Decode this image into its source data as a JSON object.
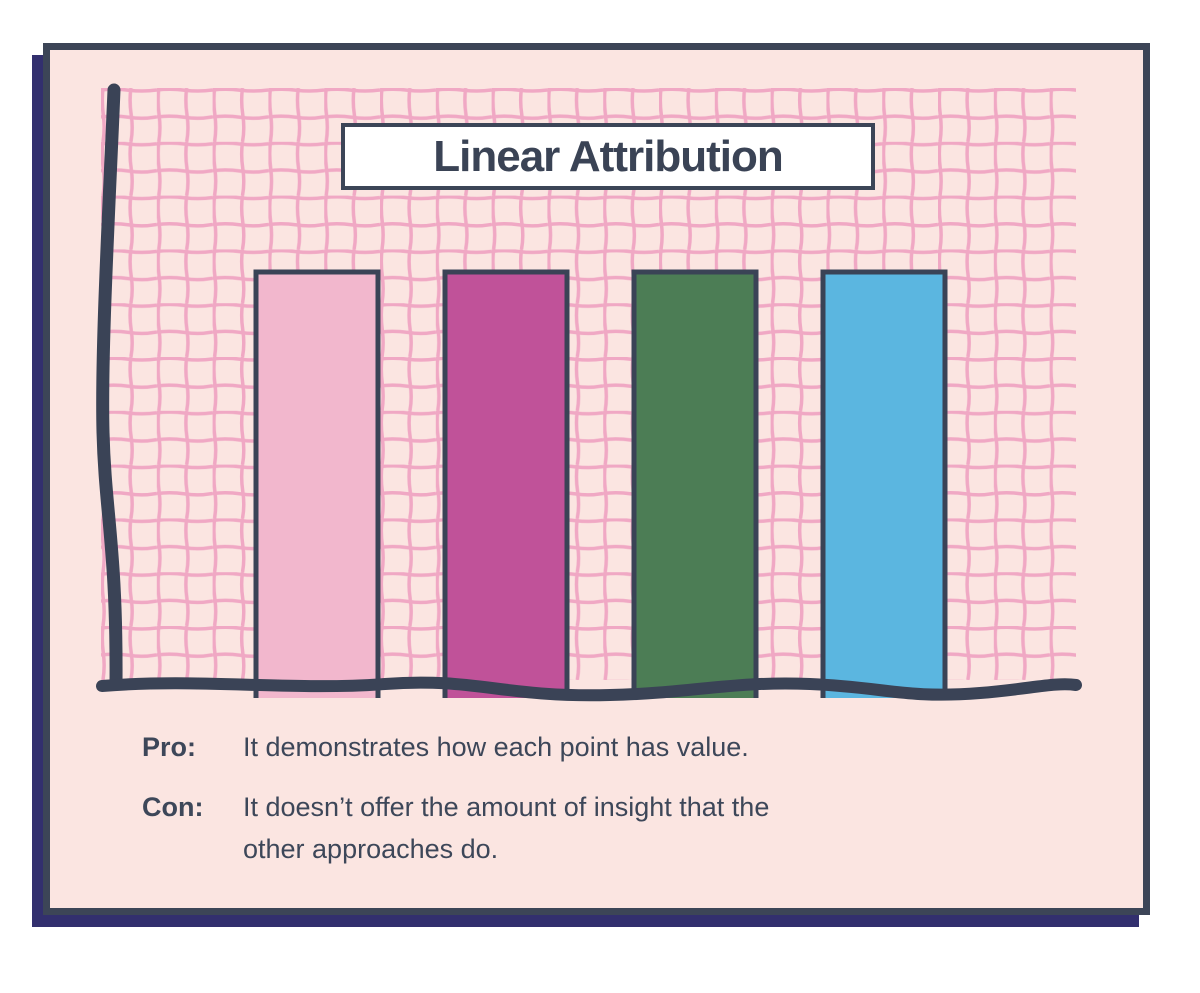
{
  "illustration": {
    "title": "Linear Attribution"
  },
  "notes": {
    "pro_label": "Pro:",
    "pro_text": "It demonstrates how each point has value.",
    "con_label": "Con:",
    "con_text_line1": "It doesn’t offer the amount of insight that the",
    "con_text_line2": "other approaches do."
  },
  "chart_data": {
    "type": "bar",
    "title": "Linear Attribution",
    "categories": [
      "",
      "",
      "",
      ""
    ],
    "values": [
      1,
      1,
      1,
      1
    ],
    "note": "four equal-height bars (equal credit per touchpoint); no axis tick labels or numeric scale shown",
    "bar_colors": [
      "#F2B7CD",
      "#C05299",
      "#4C7D55",
      "#5BB6E0"
    ],
    "bar_border_color": "#3A4356",
    "axis_color": "#3A4356",
    "grid": true,
    "grid_color": "#F0A8C4",
    "plot_background": "#FBE5E1",
    "legend": false,
    "xlabel": "",
    "ylabel": ""
  },
  "colors": {
    "page_background": "#FFFFFF",
    "card_background": "#FBE5E1",
    "card_border": "#3C4557",
    "card_shadow": "#322F6E",
    "title_box_background": "#FFFFFF",
    "text": "#3D4759"
  }
}
